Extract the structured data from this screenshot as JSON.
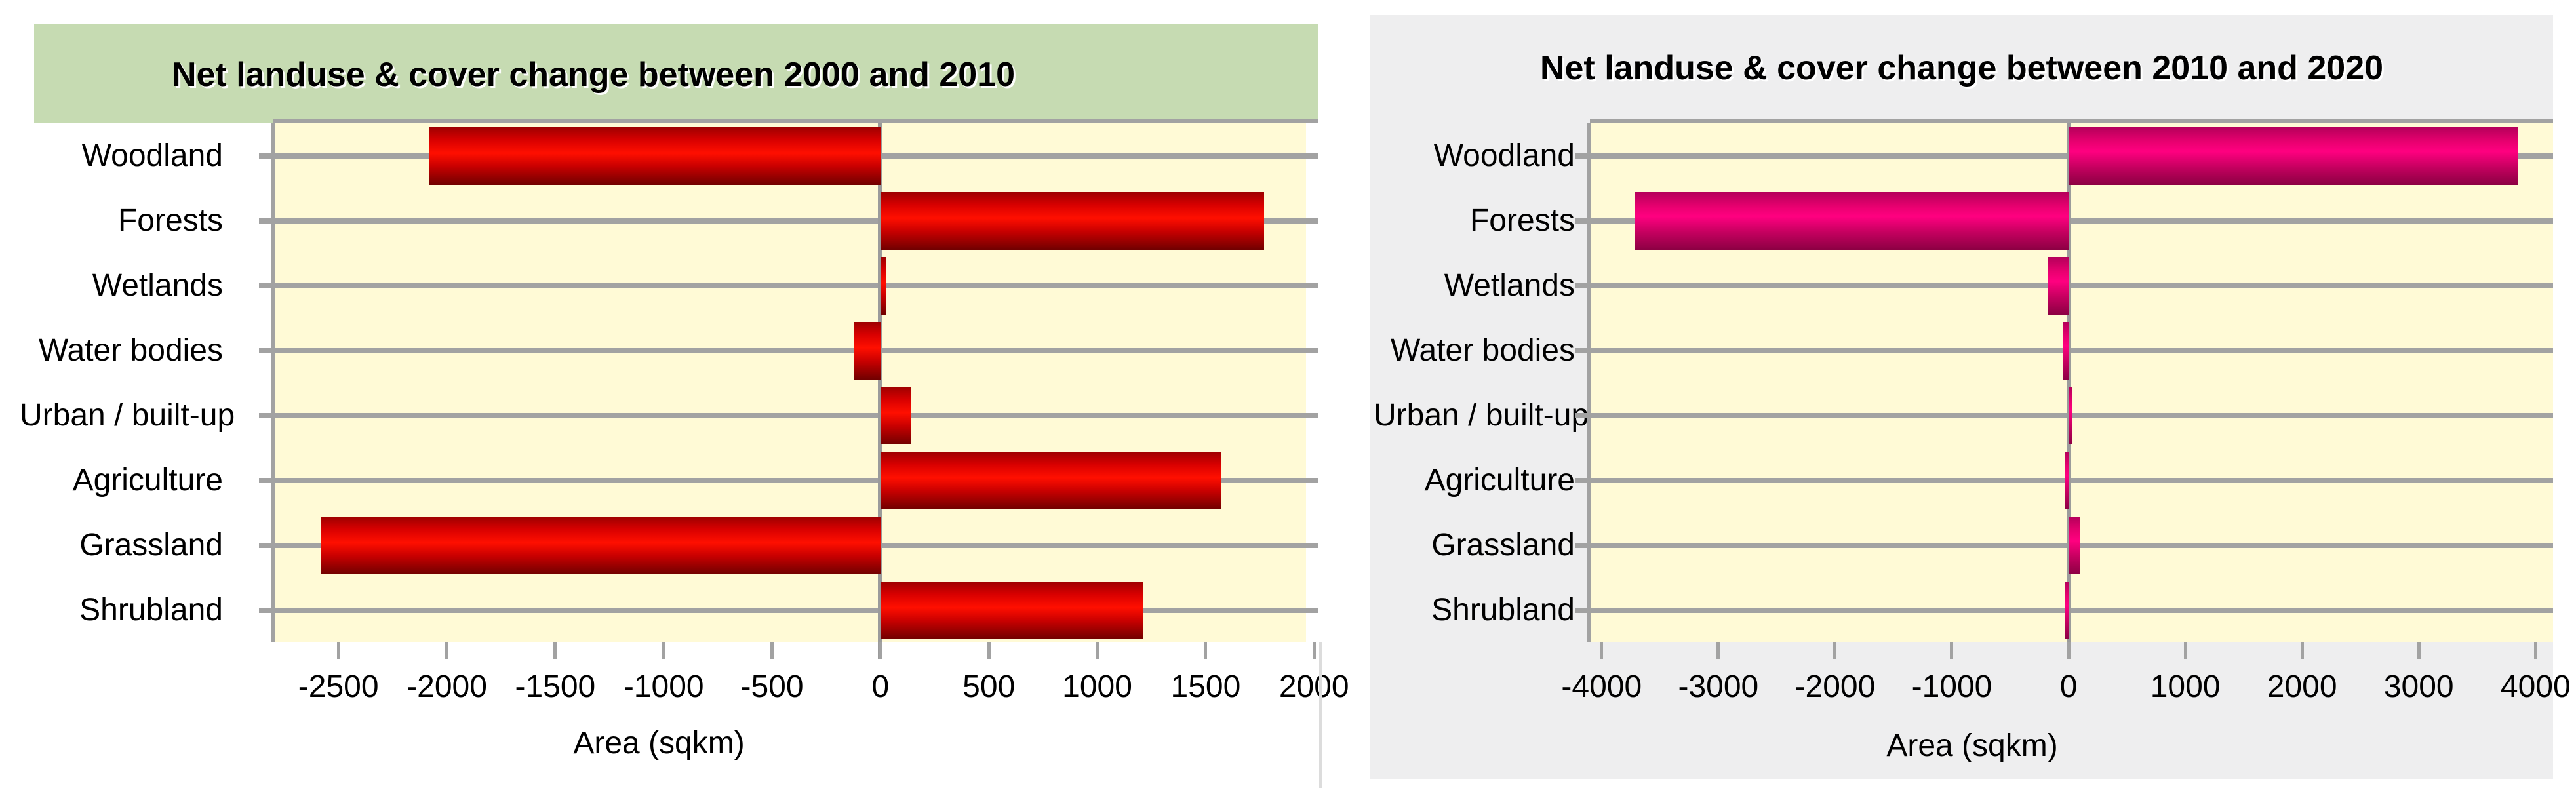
{
  "chart_data": [
    {
      "type": "bar",
      "orientation": "horizontal",
      "title": "Net landuse & cover change between 2000 and 2010",
      "xlabel": "Area (sqkm)",
      "categories": [
        "Woodland",
        "Forests",
        "Wetlands",
        "Water bodies",
        "Urban / built-up",
        "Agriculture",
        "Grassland",
        "Shrubland"
      ],
      "values": [
        -2080,
        1770,
        25,
        -120,
        140,
        1570,
        -2580,
        1210
      ],
      "xticks": [
        -2500,
        -2000,
        -1500,
        -1000,
        -500,
        0,
        500,
        1000,
        1500,
        2000
      ],
      "xlim": [
        -2800,
        1963
      ],
      "grid": "category-lines-on",
      "legend": "none",
      "colors": {
        "title_band": "#c6dbb2",
        "panel_bg": "#ffffff",
        "plot_bg": "#fffad6",
        "gridline": "#a2a2a2",
        "bar_bright": "#ff0f00",
        "bar_dark": "#700000",
        "text": "#000000"
      }
    },
    {
      "type": "bar",
      "orientation": "horizontal",
      "title": "Net landuse & cover change between 2010 and 2020",
      "xlabel": "Area (sqkm)",
      "categories": [
        "Woodland",
        "Forests",
        "Wetlands",
        "Water bodies",
        "Urban / built-up",
        "Agriculture",
        "Grassland",
        "Shrubland"
      ],
      "values": [
        3850,
        -3720,
        -180,
        -50,
        30,
        -25,
        100,
        -15
      ],
      "xticks": [
        -4000,
        -3000,
        -2000,
        -1000,
        0,
        1000,
        2000,
        3000,
        4000
      ],
      "xlim": [
        -4100,
        4150
      ],
      "grid": "category-lines-on",
      "legend": "none",
      "colors": {
        "title_band": "#eeeeef",
        "panel_bg": "#eeeeef",
        "plot_bg": "#fffad6",
        "gridline": "#a2a2a2",
        "bar_bright": "#ff0080",
        "bar_dark": "#8c0043",
        "text": "#000000"
      }
    }
  ]
}
